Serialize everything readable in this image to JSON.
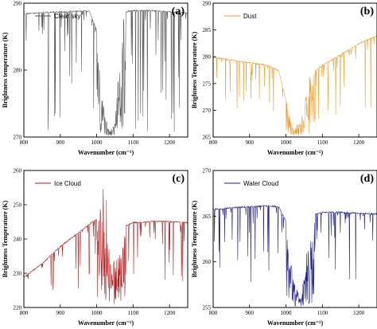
{
  "chart_data": [
    {
      "type": "line",
      "panel_label": "(a)",
      "legend": "Clear sky",
      "color": "#555555",
      "xlabel": "Wavenumber (cm⁻¹)",
      "ylabel": "Brightness temperature (K)",
      "xlim": [
        800,
        1250
      ],
      "ylim": [
        270,
        290
      ],
      "xticks": [
        800,
        900,
        1000,
        1100,
        1200
      ],
      "yticks": [
        270,
        280,
        290
      ],
      "x": [
        800,
        850,
        900,
        950,
        980,
        1000,
        1010,
        1020,
        1035,
        1050,
        1060,
        1070,
        1080,
        1100,
        1150,
        1200,
        1250
      ],
      "y": [
        288.5,
        288.7,
        288.8,
        288.9,
        288.9,
        286,
        280,
        274,
        271,
        272,
        280,
        287,
        288.8,
        289.0,
        289.0,
        288.8,
        288.6
      ]
    },
    {
      "type": "line",
      "panel_label": "(b)",
      "legend": "Dust",
      "color": "#f39a2a",
      "xlabel": "Wavenumber (cm⁻¹)",
      "ylabel": "Brightness Temperature (K)",
      "xlim": [
        800,
        1250
      ],
      "ylim": [
        265,
        290
      ],
      "xticks": [
        800,
        900,
        1000,
        1100,
        1200
      ],
      "yticks": [
        265,
        270,
        275,
        280,
        285,
        290
      ],
      "x": [
        800,
        850,
        900,
        950,
        980,
        1000,
        1020,
        1040,
        1060,
        1080,
        1100,
        1150,
        1200,
        1230,
        1250
      ],
      "y": [
        280,
        279.5,
        279,
        278.5,
        277.5,
        272,
        266.5,
        268,
        276,
        277.5,
        278.5,
        280.5,
        282.5,
        283.5,
        284
      ]
    },
    {
      "type": "line",
      "panel_label": "(c)",
      "legend": "Ice Cloud",
      "color": "#b01c1c",
      "xlabel": "Wavenumber (cm⁻¹)",
      "ylabel": "Brightness Temperature (K)",
      "xlim": [
        800,
        1250
      ],
      "ylim": [
        220,
        260
      ],
      "xticks": [
        800,
        900,
        1000,
        1100,
        1200
      ],
      "yticks": [
        220,
        230,
        240,
        250,
        260
      ],
      "x": [
        800,
        850,
        900,
        950,
        980,
        1000,
        1010,
        1020,
        1040,
        1060,
        1080,
        1100,
        1150,
        1200,
        1250
      ],
      "y": [
        229,
        233,
        238,
        242,
        244.5,
        246,
        249,
        253,
        231,
        238,
        244,
        245,
        245.3,
        245.3,
        245
      ]
    },
    {
      "type": "line",
      "panel_label": "(d)",
      "legend": "Water Cloud",
      "color": "#1a1a8c",
      "xlabel": "Wavenumber (cm⁻¹)",
      "ylabel": "Brightness Temperature (K)",
      "xlim": [
        800,
        1250
      ],
      "ylim": [
        255,
        270
      ],
      "xticks": [
        800,
        900,
        1000,
        1100,
        1200
      ],
      "yticks": [
        255,
        260,
        265,
        270
      ],
      "x": [
        800,
        850,
        900,
        950,
        980,
        1000,
        1020,
        1040,
        1060,
        1080,
        1100,
        1150,
        1200,
        1250
      ],
      "y": [
        265.8,
        266,
        266.1,
        266.2,
        266.1,
        264.5,
        258,
        256,
        262,
        265.3,
        265.5,
        265.5,
        265.4,
        265.3
      ]
    }
  ]
}
